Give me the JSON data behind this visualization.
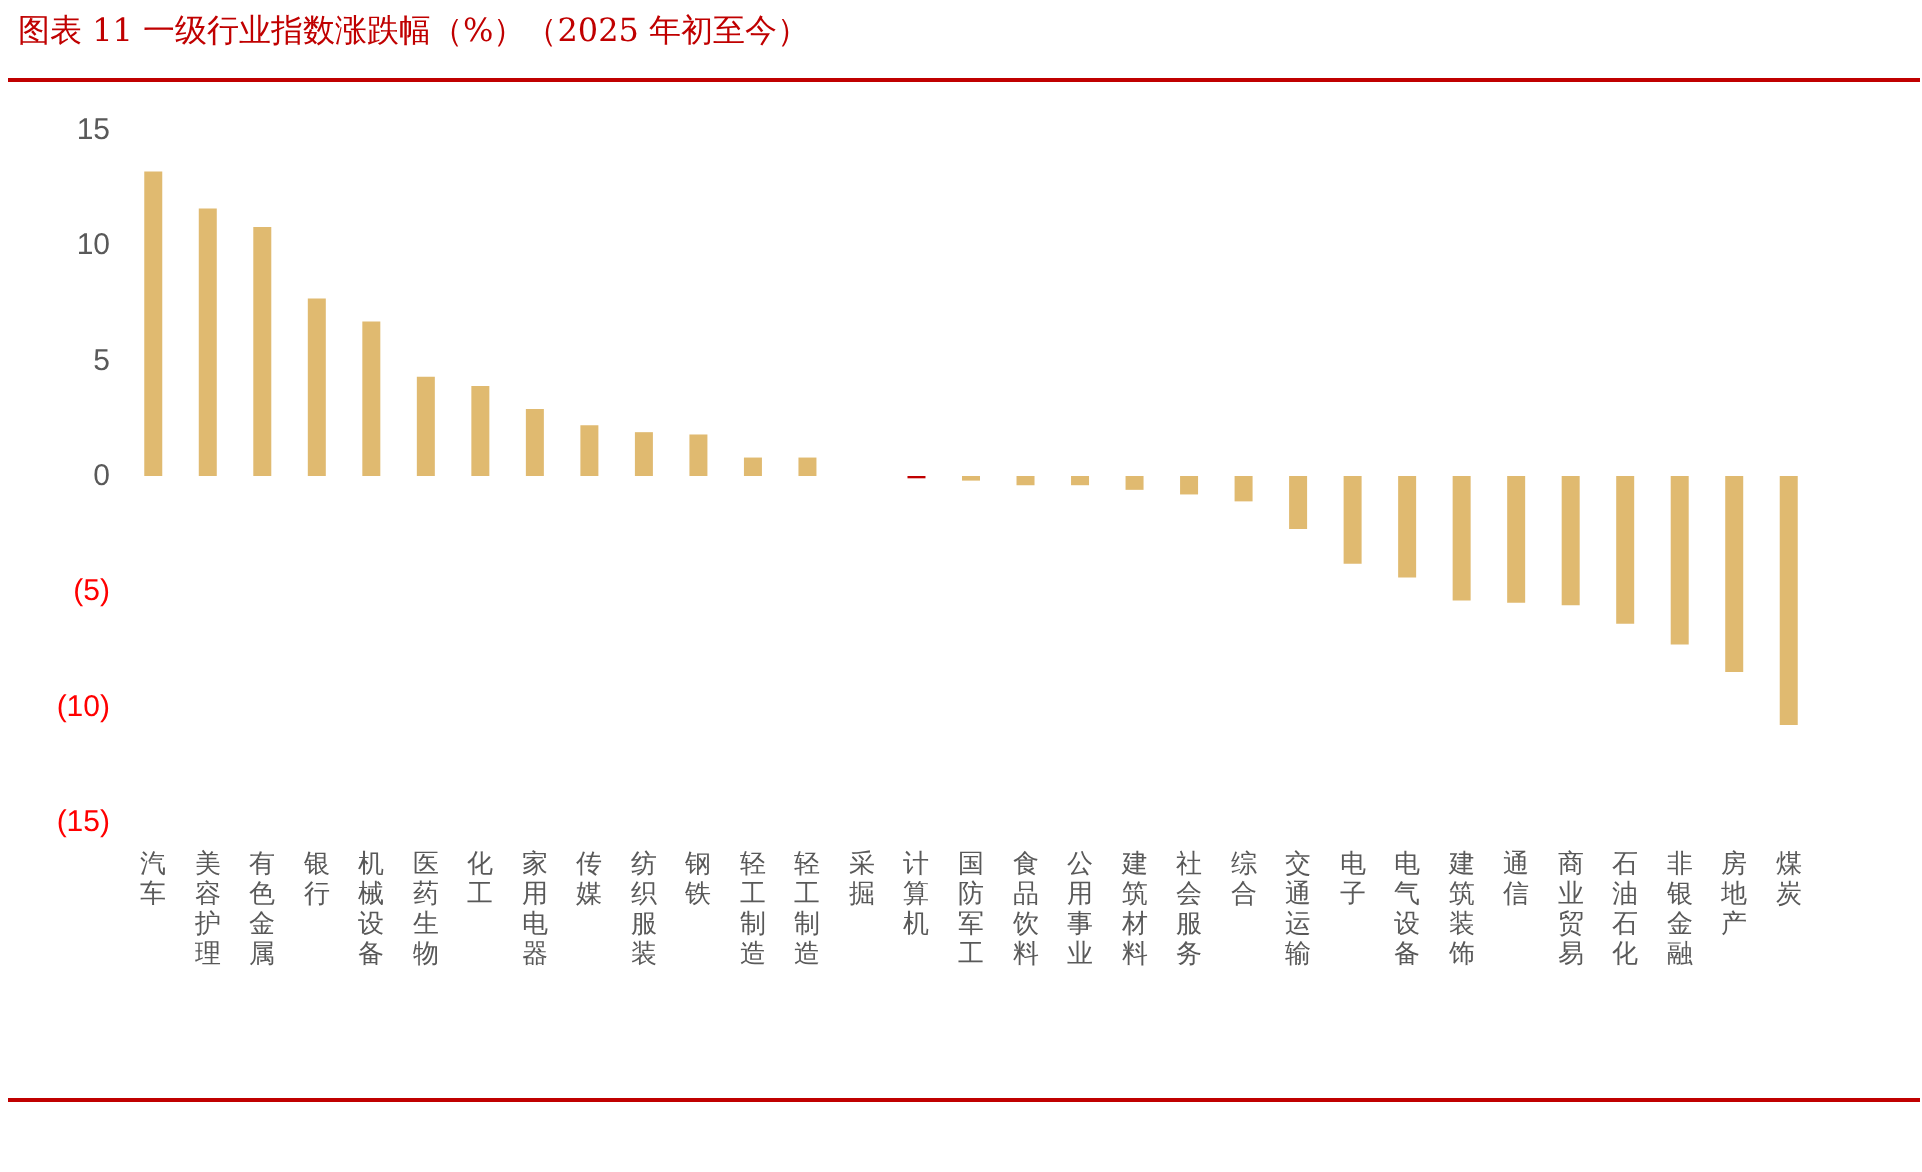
{
  "chart_data": {
    "type": "bar",
    "title": "图表 11 一级行业指数涨跌幅（%）（2025 年初至今）",
    "categories": [
      "汽车",
      "美容护理",
      "有色金属",
      "银行",
      "机械设备",
      "医药生物",
      "化工",
      "家用电器",
      "传媒",
      "纺织服装",
      "钢铁",
      "轻工制造",
      "轻工制造",
      "采掘",
      "计算机",
      "国防军工",
      "食品饮料",
      "公用事业",
      "建筑材料",
      "社会服务",
      "综合",
      "交通运输",
      "电子",
      "电气设备",
      "建筑装饰",
      "通信",
      "商业贸易",
      "石油石化",
      "非银金融",
      "房地产",
      "煤炭"
    ],
    "values": [
      13.2,
      11.6,
      10.8,
      7.7,
      6.7,
      4.3,
      3.9,
      2.9,
      2.2,
      1.9,
      1.8,
      0.8,
      0.8,
      0,
      -0.1,
      -0.2,
      -0.4,
      -0.4,
      -0.6,
      -0.8,
      -1.1,
      -2.3,
      -3.8,
      -4.4,
      -5.4,
      -5.5,
      -5.6,
      -6.4,
      -7.3,
      -8.5,
      -10.8
    ],
    "colors": [
      "#e0ba70",
      "#e0ba70",
      "#e0ba70",
      "#e0ba70",
      "#e0ba70",
      "#e0ba70",
      "#e0ba70",
      "#e0ba70",
      "#e0ba70",
      "#e0ba70",
      "#e0ba70",
      "#e0ba70",
      "#e0ba70",
      "#e0ba70",
      "#c00000",
      "#e0ba70",
      "#e0ba70",
      "#e0ba70",
      "#e0ba70",
      "#e0ba70",
      "#e0ba70",
      "#e0ba70",
      "#e0ba70",
      "#e0ba70",
      "#e0ba70",
      "#e0ba70",
      "#e0ba70",
      "#e0ba70",
      "#e0ba70",
      "#e0ba70",
      "#e0ba70"
    ],
    "ylim": [
      -15,
      15
    ],
    "yticks": [
      {
        "value": -15,
        "label": "(15)"
      },
      {
        "value": -10,
        "label": "(10)"
      },
      {
        "value": -5,
        "label": "(5)"
      },
      0,
      5,
      10,
      15
    ]
  }
}
